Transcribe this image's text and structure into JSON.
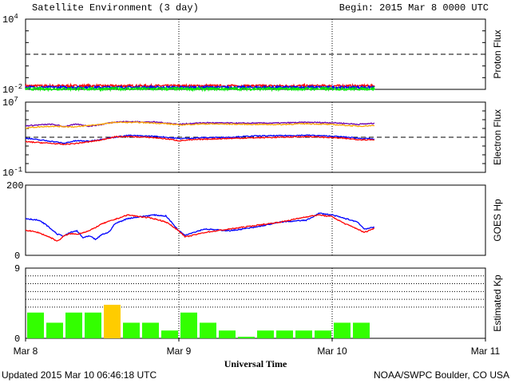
{
  "header": {
    "title": "Satellite Environment (3 day)",
    "begin": "Begin:  2015 Mar 8 0000 UTC"
  },
  "footer": {
    "updated": "Updated 2015 Mar 10 06:46:18 UTC",
    "credit": "NOAA/SWPC Boulder, CO USA"
  },
  "xaxis": {
    "label": "Universal Time",
    "ticks": [
      "Mar 8",
      "Mar 9",
      "Mar 10",
      "Mar 11"
    ],
    "range_hours": [
      0,
      72
    ],
    "data_end_hour": 54.7,
    "day_separators_dotted": true
  },
  "colors": {
    "red": "#ff0000",
    "blue": "#0000ff",
    "green": "#00ee00",
    "purple": "#6a00b0",
    "orange": "#ffa500",
    "kp_normal": "#33ff00",
    "kp_elevated": "#ffcc00"
  },
  "chart_data": [
    {
      "type": "line",
      "panel": "proton",
      "ylabel": "Proton Flux",
      "yscale": "log",
      "ylim": [
        0.01,
        10000
      ],
      "yticks": [
        {
          "main": "10",
          "sup": "4",
          "value": 10000
        },
        {
          "main": "10",
          "sup": "-2",
          "value": 0.01
        }
      ],
      "threshold": 10,
      "x_hours": [
        0,
        54.7
      ],
      "series": [
        {
          "color": "red",
          "level": 0.02,
          "spread": 0.1
        },
        {
          "color": "blue",
          "level": 0.015,
          "spread": 0.1
        },
        {
          "color": "green",
          "level": 0.011,
          "spread": 0.12
        }
      ]
    },
    {
      "type": "line",
      "panel": "electron",
      "ylabel": "Electron Flux",
      "yscale": "log",
      "ylim": [
        0.1,
        10000000
      ],
      "yticks": [
        {
          "main": "10",
          "sup": "7",
          "value": 10000000
        },
        {
          "main": "10",
          "sup": "-1",
          "value": 0.1
        }
      ],
      "threshold": 1000,
      "series": [
        {
          "color": "purple",
          "points": [
            [
              0,
              20000
            ],
            [
              2,
              25000
            ],
            [
              4,
              30000
            ],
            [
              6,
              16000
            ],
            [
              8,
              30000
            ],
            [
              10,
              18000
            ],
            [
              12,
              28000
            ],
            [
              14,
              55000
            ],
            [
              16,
              60000
            ],
            [
              20,
              55000
            ],
            [
              24,
              30000
            ],
            [
              28,
              45000
            ],
            [
              34,
              40000
            ],
            [
              40,
              42000
            ],
            [
              44,
              50000
            ],
            [
              48,
              45000
            ],
            [
              52,
              30000
            ],
            [
              54.7,
              38000
            ]
          ]
        },
        {
          "color": "orange",
          "points": [
            [
              0,
              12000
            ],
            [
              4,
              18000
            ],
            [
              8,
              15000
            ],
            [
              12,
              30000
            ],
            [
              14,
              50000
            ],
            [
              18,
              48000
            ],
            [
              22,
              35000
            ],
            [
              24,
              25000
            ],
            [
              28,
              33000
            ],
            [
              34,
              30000
            ],
            [
              40,
              28000
            ],
            [
              44,
              35000
            ],
            [
              48,
              28000
            ],
            [
              52,
              18000
            ],
            [
              54.7,
              22000
            ]
          ]
        },
        {
          "color": "blue",
          "points": [
            [
              0,
              800
            ],
            [
              2,
              500
            ],
            [
              4,
              350
            ],
            [
              6,
              200
            ],
            [
              8,
              400
            ],
            [
              10,
              350
            ],
            [
              12,
              600
            ],
            [
              14,
              1000
            ],
            [
              16,
              1600
            ],
            [
              20,
              1300
            ],
            [
              24,
              700
            ],
            [
              28,
              900
            ],
            [
              32,
              1000
            ],
            [
              36,
              1400
            ],
            [
              40,
              1500
            ],
            [
              44,
              1700
            ],
            [
              48,
              1300
            ],
            [
              52,
              800
            ],
            [
              54.7,
              600
            ]
          ]
        },
        {
          "color": "red",
          "points": [
            [
              0,
              300
            ],
            [
              2,
              250
            ],
            [
              4,
              200
            ],
            [
              6,
              150
            ],
            [
              8,
              200
            ],
            [
              10,
              300
            ],
            [
              12,
              500
            ],
            [
              14,
              1100
            ],
            [
              16,
              1200
            ],
            [
              20,
              900
            ],
            [
              24,
              400
            ],
            [
              28,
              600
            ],
            [
              34,
              800
            ],
            [
              40,
              1000
            ],
            [
              44,
              1200
            ],
            [
              48,
              900
            ],
            [
              52,
              550
            ],
            [
              54.7,
              500
            ]
          ]
        }
      ]
    },
    {
      "type": "line",
      "panel": "goes_hp",
      "ylabel": "GOES Hp",
      "ylim": [
        0,
        200
      ],
      "yticks": [
        {
          "label": "200",
          "value": 200
        },
        {
          "label": "0",
          "value": 0
        }
      ],
      "series": [
        {
          "color": "blue",
          "points": [
            [
              0,
              105
            ],
            [
              2,
              100
            ],
            [
              3,
              90
            ],
            [
              4,
              75
            ],
            [
              5,
              60
            ],
            [
              6,
              55
            ],
            [
              7,
              65
            ],
            [
              8,
              70
            ],
            [
              9,
              50
            ],
            [
              10,
              55
            ],
            [
              11,
              45
            ],
            [
              12,
              60
            ],
            [
              13,
              65
            ],
            [
              14,
              90
            ],
            [
              16,
              105
            ],
            [
              20,
              115
            ],
            [
              22,
              112
            ],
            [
              24,
              70
            ],
            [
              25,
              58
            ],
            [
              28,
              75
            ],
            [
              32,
              70
            ],
            [
              36,
              80
            ],
            [
              40,
              95
            ],
            [
              44,
              100
            ],
            [
              46,
              120
            ],
            [
              48,
              115
            ],
            [
              50,
              105
            ],
            [
              52,
              95
            ],
            [
              53,
              75
            ],
            [
              54.7,
              80
            ]
          ]
        },
        {
          "color": "red",
          "points": [
            [
              0,
              72
            ],
            [
              2,
              65
            ],
            [
              4,
              50
            ],
            [
              5,
              40
            ],
            [
              6,
              55
            ],
            [
              7,
              62
            ],
            [
              8,
              60
            ],
            [
              10,
              70
            ],
            [
              12,
              90
            ],
            [
              16,
              115
            ],
            [
              20,
              105
            ],
            [
              22,
              95
            ],
            [
              24,
              70
            ],
            [
              25,
              52
            ],
            [
              28,
              65
            ],
            [
              34,
              80
            ],
            [
              40,
              95
            ],
            [
              44,
              110
            ],
            [
              46,
              115
            ],
            [
              48,
              110
            ],
            [
              50,
              90
            ],
            [
              52,
              75
            ],
            [
              53,
              65
            ],
            [
              54.7,
              78
            ]
          ]
        }
      ]
    },
    {
      "type": "bar",
      "panel": "kp",
      "ylabel": "Estimated Kp",
      "ylim": [
        0,
        9
      ],
      "yticks": [
        {
          "label": "9",
          "value": 9
        },
        {
          "label": "0",
          "value": 0
        }
      ],
      "grid_levels": [
        5,
        6,
        7,
        8,
        9
      ],
      "dotted_levels": [
        4
      ],
      "bar_width_hours": 3,
      "values": [
        3.3,
        2.0,
        3.3,
        3.3,
        4.3,
        2.0,
        2.0,
        1.0,
        3.3,
        2.0,
        1.0,
        0.2,
        1.0,
        1.0,
        1.0,
        1.0,
        2.0,
        2.0
      ],
      "colors": [
        "kp_normal",
        "kp_normal",
        "kp_normal",
        "kp_normal",
        "kp_elevated",
        "kp_normal",
        "kp_normal",
        "kp_normal",
        "kp_normal",
        "kp_normal",
        "kp_normal",
        "kp_normal",
        "kp_normal",
        "kp_normal",
        "kp_normal",
        "kp_normal",
        "kp_normal",
        "kp_normal"
      ]
    }
  ]
}
